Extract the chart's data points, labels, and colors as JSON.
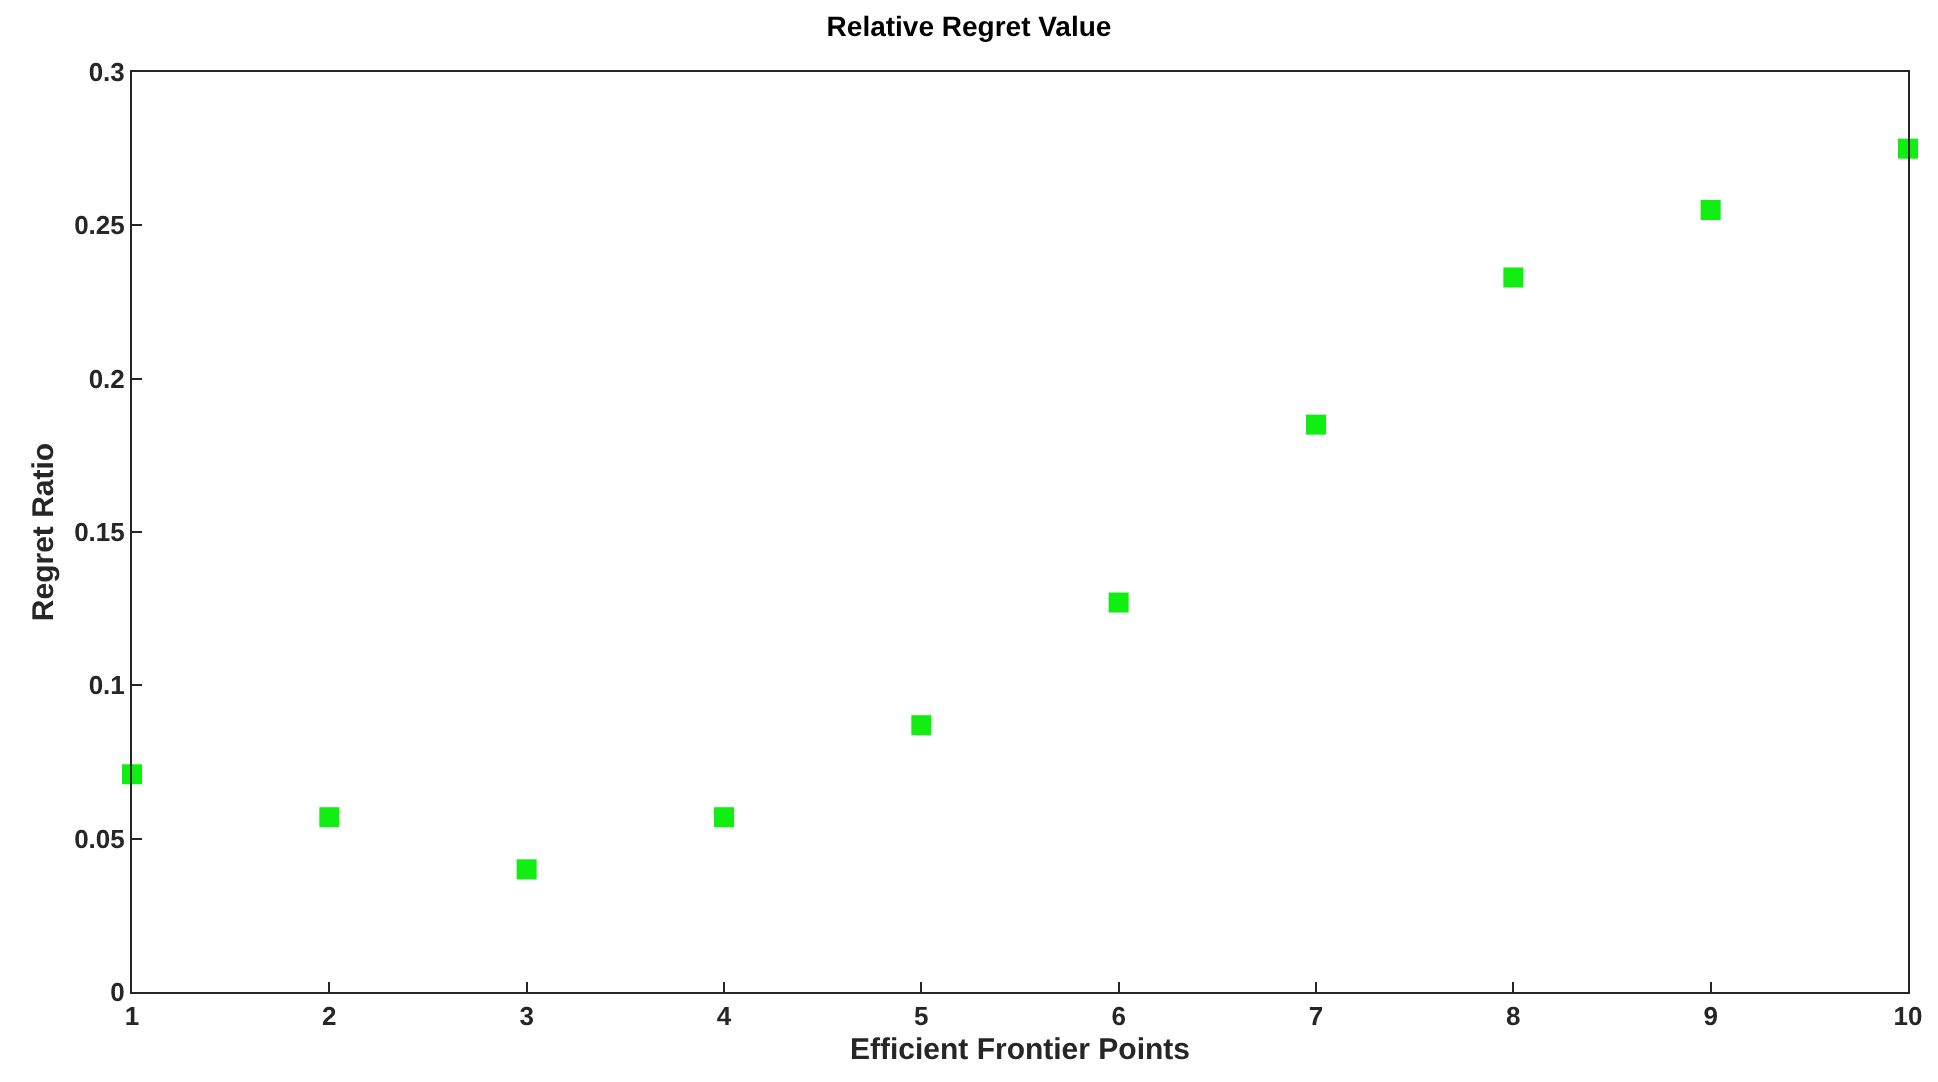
{
  "chart_data": {
    "type": "scatter",
    "title": "Relative Regret Value",
    "xlabel": "Efficient Frontier Points",
    "ylabel": "Regret Ratio",
    "x": [
      1,
      2,
      3,
      4,
      5,
      6,
      7,
      8,
      9,
      10
    ],
    "series": [
      {
        "color": "#11ee11",
        "values": [
          0.071,
          0.057,
          0.04,
          0.057,
          0.087,
          0.127,
          0.185,
          0.233,
          0.255,
          0.275
        ]
      }
    ],
    "xlim": [
      1,
      10
    ],
    "xticks": [
      1,
      2,
      3,
      4,
      5,
      6,
      7,
      8,
      9,
      10
    ],
    "ylim": [
      0,
      0.3
    ],
    "yticks": [
      0,
      0.05,
      0.1,
      0.15,
      0.2,
      0.25,
      0.3
    ],
    "marker": "square"
  }
}
